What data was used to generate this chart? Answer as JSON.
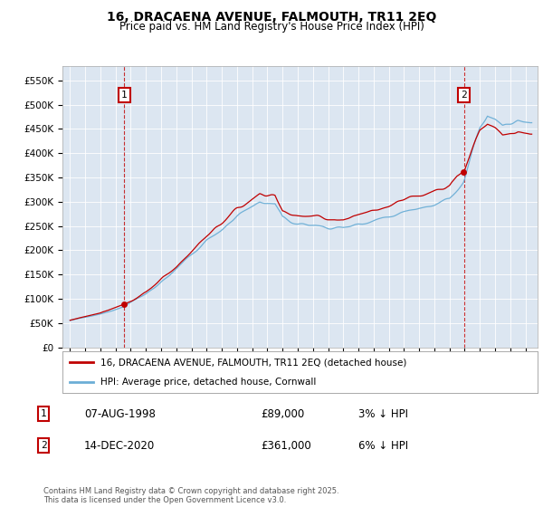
{
  "title": "16, DRACAENA AVENUE, FALMOUTH, TR11 2EQ",
  "subtitle": "Price paid vs. HM Land Registry's House Price Index (HPI)",
  "ylim": [
    0,
    580000
  ],
  "yticks": [
    0,
    50000,
    100000,
    150000,
    200000,
    250000,
    300000,
    350000,
    400000,
    450000,
    500000,
    550000
  ],
  "ytick_labels": [
    "£0",
    "£50K",
    "£100K",
    "£150K",
    "£200K",
    "£250K",
    "£300K",
    "£350K",
    "£400K",
    "£450K",
    "£500K",
    "£550K"
  ],
  "hpi_color": "#6baed6",
  "price_color": "#c00000",
  "marker1_date": 1998.58,
  "marker1_price": 89000,
  "marker2_date": 2020.95,
  "marker2_price": 361000,
  "legend_line1": "16, DRACAENA AVENUE, FALMOUTH, TR11 2EQ (detached house)",
  "legend_line2": "HPI: Average price, detached house, Cornwall",
  "row1_label": "1",
  "row1_date": "07-AUG-1998",
  "row1_price": "£89,000",
  "row1_hpi": "3% ↓ HPI",
  "row2_label": "2",
  "row2_date": "14-DEC-2020",
  "row2_price": "£361,000",
  "row2_hpi": "6% ↓ HPI",
  "footnote": "Contains HM Land Registry data © Crown copyright and database right 2025.\nThis data is licensed under the Open Government Licence v3.0.",
  "title_fontsize": 10,
  "subtitle_fontsize": 8.5
}
